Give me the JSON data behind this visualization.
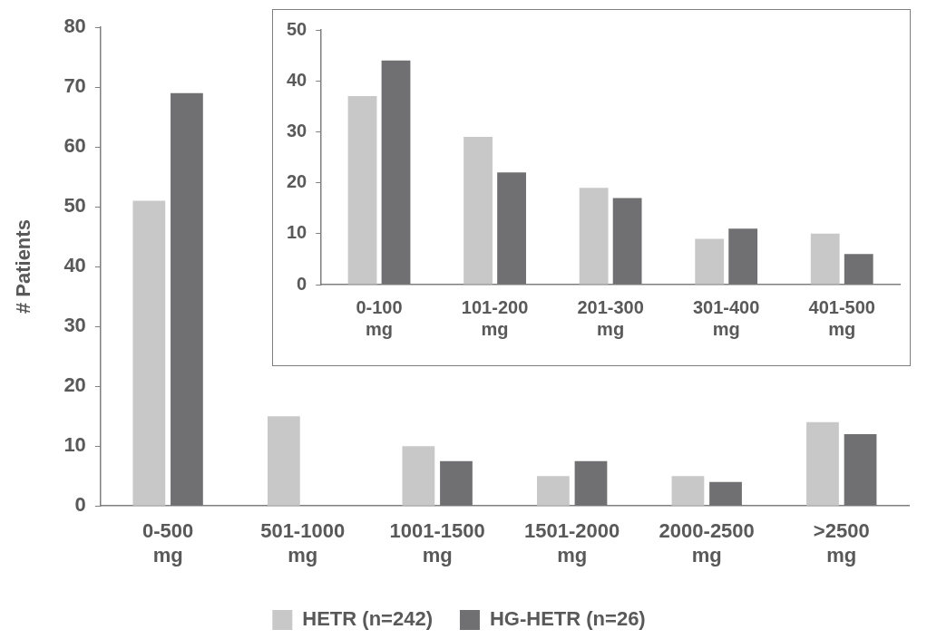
{
  "chart_data": [
    {
      "type": "bar",
      "ylabel": "# Patients",
      "categories": [
        "0-500 mg",
        "501-1000 mg",
        "1001-1500 mg",
        "1501-2000 mg",
        "2000-2500 mg",
        ">2500 mg"
      ],
      "series": [
        {
          "name": "HETR (n=242)",
          "color": "#c8c8c8",
          "values": [
            51,
            15,
            10,
            5,
            5,
            14
          ]
        },
        {
          "name": "HG-HETR (n=26)",
          "color": "#707073",
          "values": [
            69,
            0,
            7.5,
            7.5,
            4,
            12
          ]
        }
      ],
      "ylim": [
        0,
        80
      ],
      "yticks": [
        0,
        10,
        20,
        30,
        40,
        50,
        60,
        70,
        80
      ],
      "grid": false,
      "legend": "bottom"
    },
    {
      "type": "bar",
      "categories": [
        "0-100 mg",
        "101-200 mg",
        "201-300 mg",
        "301-400 mg",
        "401-500 mg"
      ],
      "series": [
        {
          "color": "#c8c8c8",
          "values": [
            37,
            29,
            19,
            9,
            10
          ]
        },
        {
          "color": "#707073",
          "values": [
            44,
            22,
            17,
            11,
            6
          ]
        }
      ],
      "ylim": [
        0,
        50
      ],
      "yticks": [
        0,
        10,
        20,
        30,
        40,
        50
      ],
      "grid": false
    }
  ]
}
